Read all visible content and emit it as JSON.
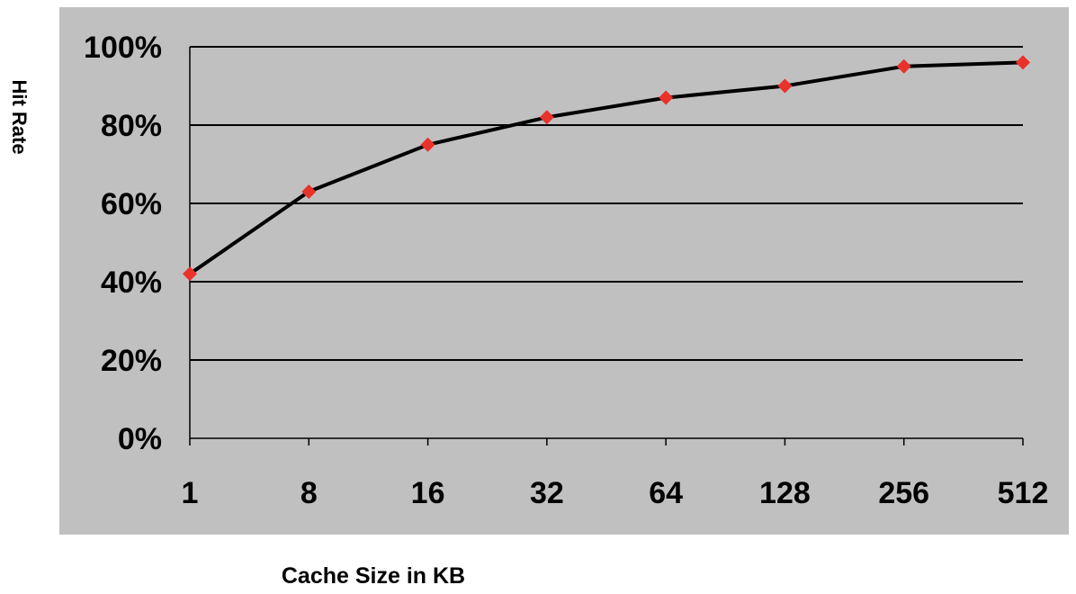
{
  "chart_data": {
    "type": "line",
    "title": "",
    "xlabel": "Cache Size in KB",
    "ylabel": "Hit Rate",
    "categories": [
      "1",
      "8",
      "16",
      "32",
      "64",
      "128",
      "256",
      "512"
    ],
    "series": [
      {
        "values": [
          42,
          63,
          75,
          82,
          87,
          90,
          95,
          96
        ]
      }
    ],
    "yticks": [
      "0%",
      "20%",
      "40%",
      "60%",
      "80%",
      "100%"
    ],
    "ylim": [
      0,
      100
    ],
    "grid": true,
    "legend": "none",
    "colors": {
      "plot_background": "#c0c0c0",
      "line": "#000000",
      "marker": "#e8322a",
      "gridline": "#000000"
    }
  }
}
